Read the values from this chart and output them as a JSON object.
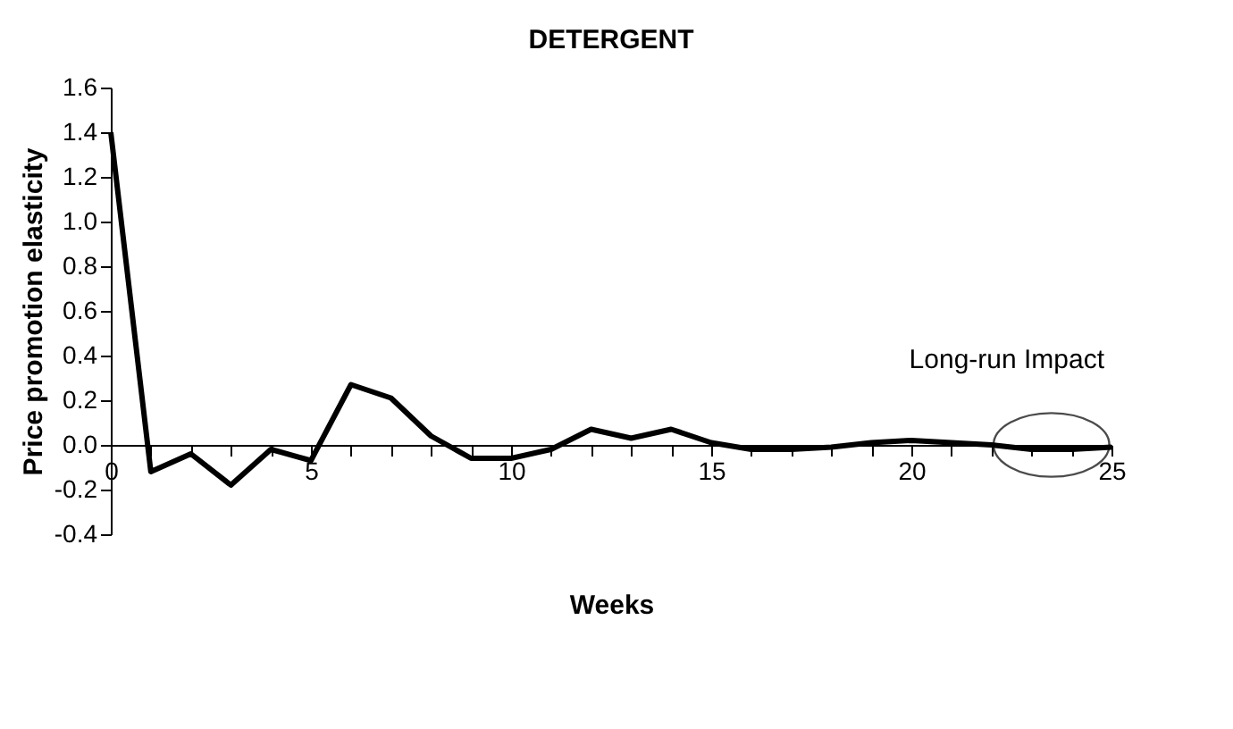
{
  "chart_data": {
    "type": "line",
    "title": "DETERGENT",
    "xlabel": "Weeks",
    "ylabel": "Price promotion elasticity",
    "x": [
      0,
      1,
      2,
      3,
      4,
      5,
      6,
      7,
      8,
      9,
      10,
      11,
      12,
      13,
      14,
      15,
      16,
      17,
      18,
      19,
      20,
      21,
      22,
      23,
      24,
      25
    ],
    "series": [
      {
        "color": "#000000",
        "values": [
          1.4,
          -0.12,
          -0.04,
          -0.18,
          -0.02,
          -0.07,
          0.27,
          0.21,
          0.04,
          -0.06,
          -0.06,
          -0.02,
          0.07,
          0.03,
          0.07,
          0.01,
          -0.02,
          -0.02,
          -0.01,
          0.01,
          0.02,
          0.01,
          0.0,
          -0.02,
          -0.02,
          -0.01
        ]
      }
    ],
    "xlim": [
      0,
      25
    ],
    "xticks": [
      0,
      5,
      10,
      15,
      20,
      25
    ],
    "ylim": [
      -0.4,
      1.6
    ],
    "yticks": [
      {
        "value": -0.4,
        "label": "-0.4"
      },
      {
        "value": -0.2,
        "label": "-0.2"
      },
      {
        "value": 0,
        "label": "0.0"
      },
      {
        "value": 0.2,
        "label": "0.2"
      },
      {
        "value": 0.4,
        "label": "0.4"
      },
      {
        "value": 0.6,
        "label": "0.6"
      },
      {
        "value": 0.8,
        "label": "0.8"
      },
      {
        "value": 1,
        "label": "1.0"
      },
      {
        "value": 1.2,
        "label": "1.2"
      },
      {
        "value": 1.4,
        "label": "1.4"
      },
      {
        "value": 1.6,
        "label": "1.6"
      }
    ],
    "annotations": [
      {
        "text": "Long-run Impact",
        "x": 23.5,
        "y": 0
      }
    ],
    "grid": false,
    "marker": "none",
    "line_style": "solid"
  }
}
